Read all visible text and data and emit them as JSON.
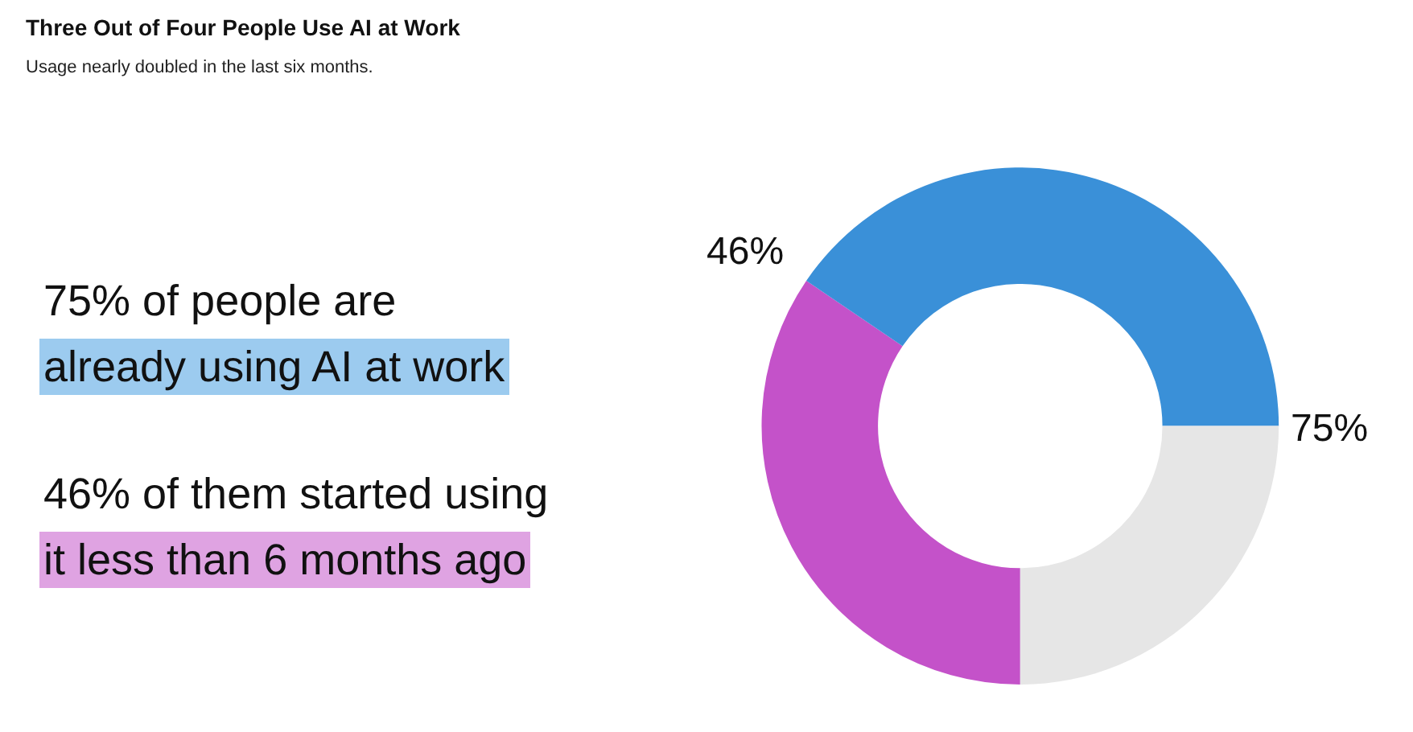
{
  "chart_data": {
    "type": "donut",
    "title": "Three Out of Four People Use AI at Work",
    "subtitle": "Usage nearly doubled in the last six months.",
    "categories": [
      null,
      null,
      null
    ],
    "values": [
      34.5,
      40.5,
      25
    ],
    "colors": [
      "#c452c9",
      "#3a90d8",
      "#e6e6e6"
    ],
    "annotations": [
      "46%",
      "75%",
      "75% of people are",
      "already using AI at work",
      "46% of them started using",
      "it less than 6 months ago"
    ],
    "legend": false
  }
}
